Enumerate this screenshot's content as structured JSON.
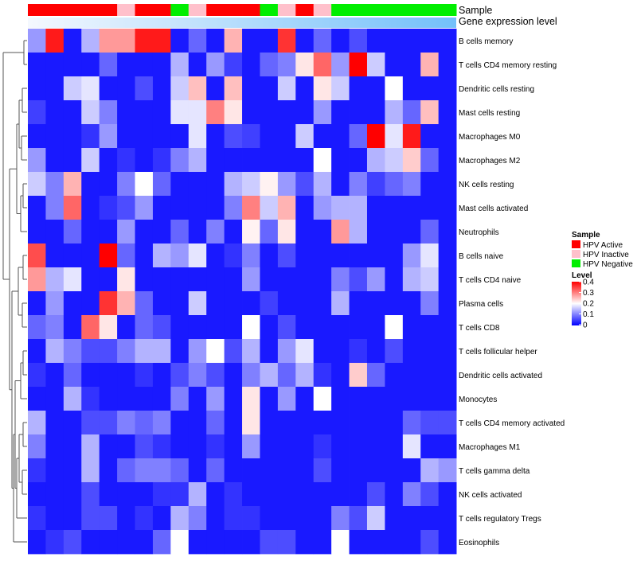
{
  "chart_data": {
    "type": "heatmap",
    "annotation_tracks": [
      "Sample",
      "Gene expression level"
    ],
    "sample_groups": [
      "HPV Active",
      "HPV Active",
      "HPV Active",
      "HPV Active",
      "HPV Active",
      "HPV Inactive",
      "HPV Active",
      "HPV Active",
      "HPV Negative",
      "HPV Inactive",
      "HPV Active",
      "HPV Active",
      "HPV Active",
      "HPV Negative",
      "HPV Inactive",
      "HPV Active",
      "HPV Inactive",
      "HPV Negative",
      "HPV Negative",
      "HPV Negative",
      "HPV Negative",
      "HPV Negative",
      "HPV Negative",
      "HPV Negative"
    ],
    "expression_gradient": {
      "from": "#f4f8fe",
      "to": "#73c0fa"
    },
    "rows": [
      "B cells memory",
      "T cells CD4 memory resting",
      "Dendritic cells resting",
      "Mast cells resting",
      "Macrophages M0",
      "Macrophages M2",
      "NK cells resting",
      "Mast cells activated",
      "Neutrophils",
      "B cells naive",
      "T cells CD4 naive",
      "Plasma cells",
      "T cells CD8",
      "T cells follicular helper",
      "Dendritic cells activated",
      "Monocytes",
      "T cells CD4 memory activated",
      "Macrophages M1",
      "T cells gamma delta",
      "NK cells activated",
      "T cells regulatory  Tregs",
      "Eosinophils"
    ],
    "values": [
      [
        0.12,
        0.38,
        0.02,
        0.14,
        0.28,
        0.28,
        0.38,
        0.38,
        0.02,
        0.08,
        0.02,
        0.26,
        0.02,
        0.02,
        0.36,
        0.02,
        0.08,
        0.02,
        0.06,
        0.02,
        0.02,
        0.02,
        0.02,
        0.02
      ],
      [
        0.02,
        0.02,
        0.02,
        0.02,
        0.08,
        0.02,
        0.02,
        0.02,
        0.14,
        0.02,
        0.12,
        0.05,
        0.02,
        0.08,
        0.1,
        0.22,
        0.32,
        0.12,
        0.4,
        0.16,
        0.02,
        0.02,
        0.26,
        0.02
      ],
      [
        0.02,
        0.02,
        0.16,
        0.18,
        0.02,
        0.02,
        0.06,
        0.02,
        0.16,
        0.25,
        0.02,
        0.25,
        0.02,
        0.02,
        0.16,
        0.02,
        0.22,
        0.16,
        0.02,
        0.02,
        0.2,
        0.02,
        0.02,
        0.02
      ],
      [
        0.05,
        0.02,
        0.02,
        0.16,
        0.1,
        0.02,
        0.02,
        0.02,
        0.18,
        0.18,
        0.3,
        0.22,
        0.02,
        0.02,
        0.02,
        0.02,
        0.12,
        0.02,
        0.02,
        0.02,
        0.14,
        0.08,
        0.25,
        0.02
      ],
      [
        0.02,
        0.02,
        0.02,
        0.04,
        0.12,
        0.02,
        0.02,
        0.02,
        0.02,
        0.18,
        0.02,
        0.06,
        0.05,
        0.02,
        0.02,
        0.16,
        0.02,
        0.02,
        0.08,
        0.4,
        0.18,
        0.38,
        0.02,
        0.02
      ],
      [
        0.12,
        0.02,
        0.02,
        0.16,
        0.02,
        0.04,
        0.02,
        0.04,
        0.1,
        0.14,
        0.02,
        0.02,
        0.02,
        0.02,
        0.02,
        0.02,
        0.2,
        0.02,
        0.02,
        0.14,
        0.16,
        0.24,
        0.08,
        0.02
      ],
      [
        0.16,
        0.1,
        0.26,
        0.02,
        0.02,
        0.1,
        0.2,
        0.08,
        0.02,
        0.02,
        0.02,
        0.14,
        0.16,
        0.21,
        0.12,
        0.06,
        0.14,
        0.02,
        0.1,
        0.05,
        0.08,
        0.1,
        0.02,
        0.02
      ],
      [
        0.02,
        0.1,
        0.32,
        0.02,
        0.04,
        0.06,
        0.12,
        0.02,
        0.02,
        0.02,
        0.02,
        0.1,
        0.3,
        0.16,
        0.26,
        0.02,
        0.12,
        0.14,
        0.14,
        0.02,
        0.02,
        0.02,
        0.02,
        0.02
      ],
      [
        0.02,
        0.02,
        0.08,
        0.02,
        0.02,
        0.12,
        0.02,
        0.02,
        0.08,
        0.02,
        0.1,
        0.02,
        0.21,
        0.08,
        0.22,
        0.02,
        0.02,
        0.28,
        0.14,
        0.02,
        0.02,
        0.02,
        0.08,
        0.02
      ],
      [
        0.34,
        0.02,
        0.02,
        0.02,
        0.4,
        0.08,
        0.02,
        0.14,
        0.12,
        0.18,
        0.02,
        0.04,
        0.1,
        0.02,
        0.06,
        0.02,
        0.02,
        0.02,
        0.02,
        0.02,
        0.02,
        0.12,
        0.18,
        0.02
      ],
      [
        0.28,
        0.14,
        0.18,
        0.02,
        0.02,
        0.22,
        0.02,
        0.02,
        0.02,
        0.02,
        0.02,
        0.02,
        0.12,
        0.02,
        0.02,
        0.02,
        0.02,
        0.1,
        0.06,
        0.12,
        0.02,
        0.14,
        0.16,
        0.02
      ],
      [
        0.02,
        0.12,
        0.02,
        0.02,
        0.36,
        0.26,
        0.08,
        0.02,
        0.02,
        0.16,
        0.02,
        0.02,
        0.02,
        0.05,
        0.02,
        0.02,
        0.02,
        0.14,
        0.02,
        0.02,
        0.02,
        0.02,
        0.1,
        0.02
      ],
      [
        0.08,
        0.1,
        0.02,
        0.32,
        0.22,
        0.02,
        0.08,
        0.06,
        0.02,
        0.02,
        0.02,
        0.02,
        0.2,
        0.02,
        0.06,
        0.02,
        0.02,
        0.02,
        0.02,
        0.02,
        0.2,
        0.02,
        0.02,
        0.02
      ],
      [
        0.02,
        0.14,
        0.1,
        0.06,
        0.06,
        0.1,
        0.14,
        0.14,
        0.02,
        0.12,
        0.2,
        0.06,
        0.14,
        0.02,
        0.12,
        0.18,
        0.02,
        0.02,
        0.04,
        0.02,
        0.06,
        0.02,
        0.02,
        0.02
      ],
      [
        0.04,
        0.02,
        0.08,
        0.02,
        0.02,
        0.02,
        0.04,
        0.02,
        0.06,
        0.1,
        0.06,
        0.02,
        0.1,
        0.14,
        0.08,
        0.14,
        0.04,
        0.02,
        0.24,
        0.08,
        0.02,
        0.02,
        0.02,
        0.02
      ],
      [
        0.02,
        0.02,
        0.14,
        0.04,
        0.02,
        0.02,
        0.02,
        0.02,
        0.1,
        0.02,
        0.12,
        0.02,
        0.22,
        0.02,
        0.12,
        0.02,
        0.2,
        0.02,
        0.02,
        0.02,
        0.02,
        0.02,
        0.02,
        0.02
      ],
      [
        0.14,
        0.02,
        0.02,
        0.06,
        0.06,
        0.1,
        0.08,
        0.1,
        0.02,
        0.02,
        0.08,
        0.02,
        0.22,
        0.02,
        0.02,
        0.02,
        0.02,
        0.02,
        0.02,
        0.02,
        0.02,
        0.08,
        0.06,
        0.06
      ],
      [
        0.1,
        0.02,
        0.02,
        0.14,
        0.02,
        0.02,
        0.06,
        0.04,
        0.02,
        0.02,
        0.04,
        0.02,
        0.12,
        0.02,
        0.02,
        0.02,
        0.04,
        0.02,
        0.02,
        0.02,
        0.02,
        0.18,
        0.02,
        0.02
      ],
      [
        0.04,
        0.02,
        0.02,
        0.14,
        0.02,
        0.08,
        0.1,
        0.1,
        0.08,
        0.02,
        0.08,
        0.02,
        0.02,
        0.02,
        0.02,
        0.02,
        0.06,
        0.02,
        0.02,
        0.02,
        0.02,
        0.02,
        0.14,
        0.12
      ],
      [
        0.02,
        0.02,
        0.02,
        0.06,
        0.02,
        0.02,
        0.02,
        0.04,
        0.04,
        0.14,
        0.02,
        0.04,
        0.02,
        0.02,
        0.02,
        0.02,
        0.02,
        0.02,
        0.02,
        0.06,
        0.02,
        0.1,
        0.06,
        0.02
      ],
      [
        0.04,
        0.02,
        0.02,
        0.06,
        0.06,
        0.02,
        0.04,
        0.02,
        0.14,
        0.1,
        0.02,
        0.04,
        0.04,
        0.02,
        0.02,
        0.02,
        0.02,
        0.1,
        0.06,
        0.16,
        0.02,
        0.02,
        0.02,
        0.02
      ],
      [
        0.02,
        0.04,
        0.06,
        0.02,
        0.02,
        0.02,
        0.02,
        0.08,
        0.2,
        0.02,
        0.02,
        0.02,
        0.02,
        0.06,
        0.06,
        0.02,
        0.02,
        0.2,
        0.02,
        0.02,
        0.02,
        0.02,
        0.06,
        0.02
      ]
    ],
    "legend": {
      "sample_title": "Sample",
      "sample_items": [
        {
          "label": "HPV Active",
          "color": "#ff0000"
        },
        {
          "label": "HPV Inactive",
          "color": "#ffc0cb"
        },
        {
          "label": "HPV Negative",
          "color": "#00ee00"
        }
      ],
      "level_title": "Level",
      "level_ticks": [
        "0.4",
        "0.3",
        "0.2",
        "0.1",
        "0"
      ],
      "level_range": [
        0,
        0.4
      ]
    }
  }
}
